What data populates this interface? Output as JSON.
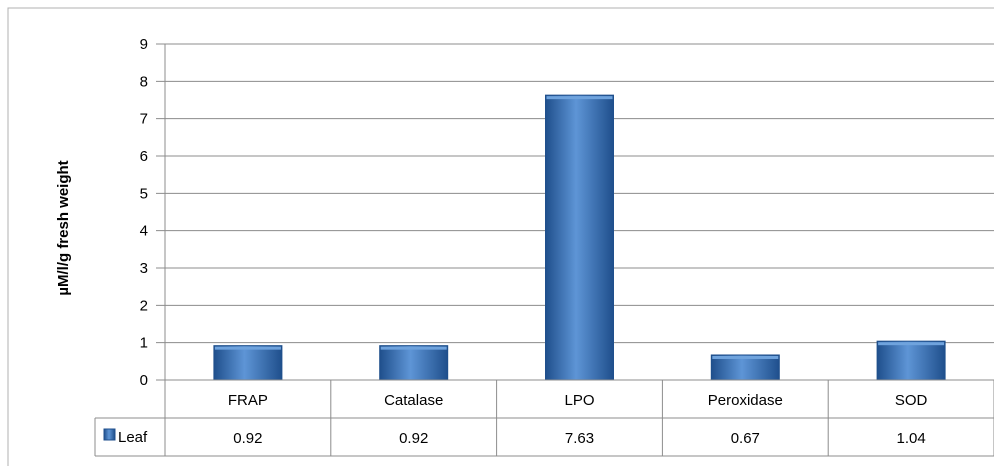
{
  "chart_data": {
    "type": "bar",
    "categories": [
      "FRAP",
      "Catalase",
      "LPO",
      "Peroxidase",
      "SOD"
    ],
    "series": [
      {
        "name": "Leaf",
        "values": [
          0.92,
          0.92,
          7.63,
          0.67,
          1.04
        ]
      }
    ],
    "data_table": {
      "legend_label": "Leaf",
      "values": [
        "0.92",
        "0.92",
        "7.63",
        "0.67",
        "1.04"
      ]
    },
    "title": "",
    "xlabel": "",
    "ylabel": "µM/l/g fresh weight",
    "ylim": [
      0,
      9
    ],
    "yticks": [
      "0",
      "1",
      "2",
      "3",
      "4",
      "5",
      "6",
      "7",
      "8",
      "9"
    ],
    "grid": true,
    "legend": "in data table",
    "colors": {
      "bar": "#3f7fc4",
      "bar_dark": "#1f4f8c",
      "bar_light": "#6fa3dd",
      "grid": "#8c8c8c"
    }
  }
}
